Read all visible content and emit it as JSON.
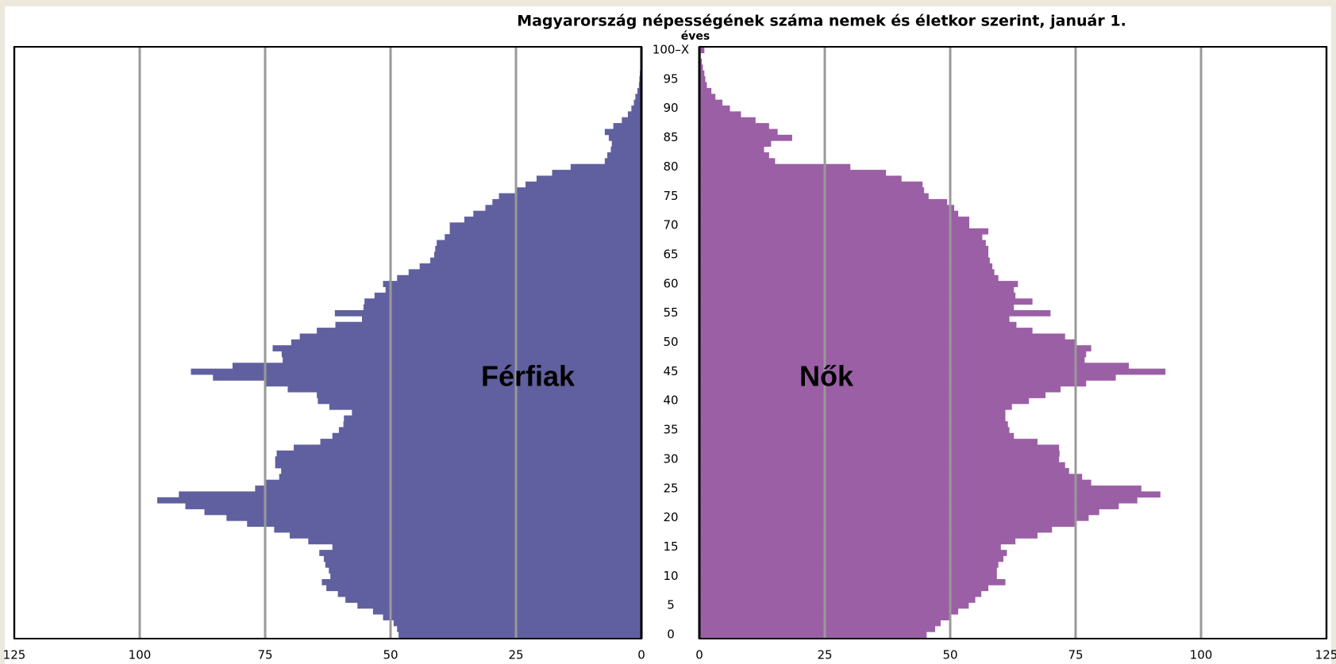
{
  "chart_data": {
    "type": "population-pyramid",
    "title": "Magyarország népességének száma nemek és életkor szerint, január 1.",
    "y_label": "éves",
    "categories": [
      "0",
      null,
      null,
      null,
      null,
      "5",
      null,
      null,
      null,
      null,
      "10",
      null,
      null,
      null,
      null,
      "15",
      null,
      null,
      null,
      null,
      "20",
      null,
      null,
      null,
      null,
      "25",
      null,
      null,
      null,
      null,
      "30",
      null,
      null,
      null,
      null,
      "35",
      null,
      null,
      null,
      null,
      "40",
      null,
      null,
      null,
      null,
      "45",
      null,
      null,
      null,
      null,
      "50",
      null,
      null,
      null,
      null,
      "55",
      null,
      null,
      null,
      null,
      "60",
      null,
      null,
      null,
      null,
      "65",
      null,
      null,
      null,
      null,
      "70",
      null,
      null,
      null,
      null,
      "75",
      null,
      null,
      null,
      null,
      "80",
      null,
      null,
      null,
      null,
      "85",
      null,
      null,
      null,
      null,
      "90",
      null,
      null,
      null,
      null,
      "95",
      null,
      null,
      null,
      null,
      "100–X"
    ],
    "series": [
      {
        "name": "Férfiak",
        "color": "#6060a0",
        "values": [
          48.4,
          48.7,
          49.4,
          51.5,
          53.5,
          56.6,
          59,
          60.5,
          62.8,
          63.7,
          62,
          62.3,
          63,
          63.3,
          64.2,
          61.6,
          66.4,
          70.1,
          73.2,
          78.6,
          82.7,
          87.1,
          90.9,
          96.5,
          92.2,
          77,
          75.2,
          72.2,
          71.8,
          73,
          73,
          72.7,
          69.3,
          64,
          61.6,
          60.3,
          59.4,
          59.3,
          57.7,
          62.2,
          64.5,
          64.7,
          70.5,
          74.9,
          85.4,
          89.8,
          81.5,
          71.5,
          71.7,
          73.5,
          69.8,
          68.1,
          64.7,
          61,
          55.7,
          61.1,
          55.4,
          55.2,
          53.2,
          51,
          51.5,
          48.7,
          46.4,
          44.2,
          42.1,
          41.3,
          41.1,
          40.8,
          39.2,
          38.2,
          38.2,
          35.3,
          33.5,
          31.1,
          29.7,
          28.4,
          24.8,
          23.1,
          20.9,
          17.8,
          14.1,
          7.3,
          6.8,
          6.1,
          5.9,
          6.5,
          7.3,
          5.6,
          3.9,
          2.7,
          2,
          1.5,
          1.2,
          0.8,
          0.5,
          0.4,
          0.3,
          0.2,
          0.1,
          0.1,
          0.1
        ]
      },
      {
        "name": "Nők",
        "color": "#9b5fa5",
        "values": [
          45.3,
          47,
          48.1,
          49.9,
          51.6,
          53.7,
          55,
          56.2,
          57.6,
          61,
          59.3,
          59.3,
          59.6,
          60.6,
          61.3,
          60.1,
          63,
          67.4,
          70.3,
          74.9,
          77.6,
          79.7,
          83.6,
          87.3,
          91.9,
          88.1,
          78.1,
          76.3,
          73.7,
          72.9,
          71.7,
          71.8,
          71.7,
          67.4,
          62.7,
          61.8,
          61.5,
          61,
          61,
          62.3,
          65.7,
          69,
          72,
          77.1,
          83,
          92.9,
          85.6,
          76.8,
          77.1,
          78.1,
          75.1,
          72.9,
          66.4,
          63.2,
          61.8,
          70,
          62.7,
          66.4,
          63,
          62.7,
          63.5,
          59.6,
          58.8,
          58.4,
          57.9,
          57.6,
          57.6,
          57.1,
          56.4,
          57.6,
          53.8,
          53.8,
          51.6,
          50.8,
          49.4,
          45.7,
          44.8,
          44.5,
          40.3,
          37.2,
          30.1,
          15.1,
          13.9,
          12.9,
          14.3,
          18.5,
          15.6,
          13.9,
          11.2,
          8.3,
          6.1,
          4.6,
          3.2,
          2.4,
          1.5,
          1.2,
          1,
          0.7,
          0.5,
          0.3,
          1
        ]
      }
    ],
    "xlim": [
      0,
      125
    ],
    "xticks": [
      0,
      25,
      50,
      75,
      100,
      125
    ],
    "grid": true
  }
}
